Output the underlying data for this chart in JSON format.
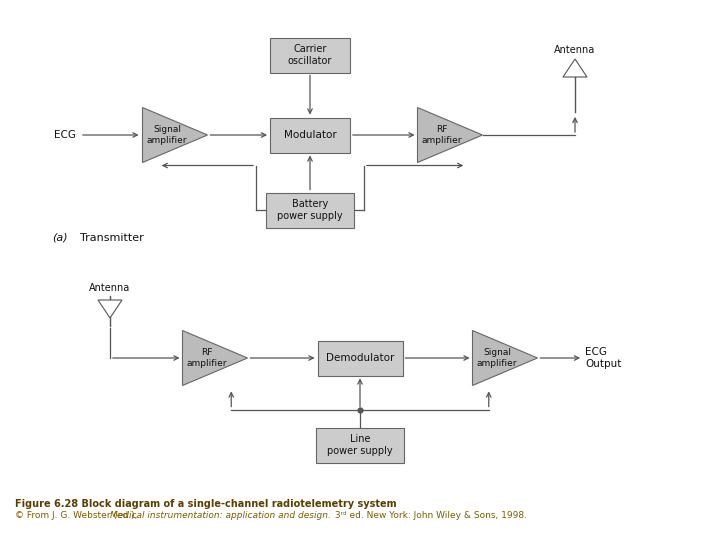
{
  "bg_color": "#ffffff",
  "title_line1": "Figure 6.28 Block diagram of a single-channel radiotelemetry system",
  "title_line2_normal1": "© From J. G. Webster (ed.), ",
  "title_line2_italic": "Medical instrumentation: application and design.",
  "title_line2_normal2": " 3ʳᵈ ed. New York: John Wiley & Sons, 1998.",
  "box_fill": "#cccccc",
  "box_edge": "#666666",
  "amp_fill": "#bbbbbb",
  "line_color": "#555555",
  "text_color": "#111111",
  "caption_color": "#7a5c00",
  "caption_bold_color": "#5a4000"
}
